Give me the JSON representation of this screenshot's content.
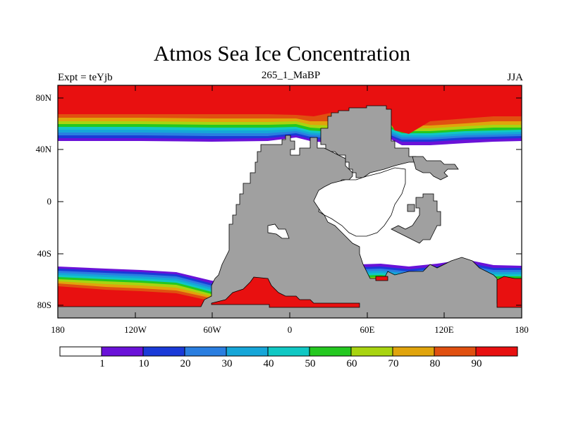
{
  "title": "Atmos Sea Ice Concentration",
  "subtitle": "265_1_MaBP",
  "left_label": "Expt = teYjb",
  "right_label": "JJA",
  "lat_labels": [
    "80N",
    "40N",
    "0",
    "40S",
    "80S"
  ],
  "lon_labels": [
    "180",
    "120W",
    "60W",
    "0",
    "60E",
    "120E",
    "180"
  ],
  "colorbar": {
    "labels": [
      "1",
      "10",
      "20",
      "30",
      "40",
      "50",
      "60",
      "70",
      "80",
      "90"
    ],
    "colors": [
      "#ffffff",
      "#6a12d8",
      "#1a3ad8",
      "#2a7ee0",
      "#16a6d8",
      "#10c8c4",
      "#24c820",
      "#a8d410",
      "#e0a40c",
      "#e05010",
      "#e81010"
    ]
  },
  "colors": {
    "land": "#a0a0a0",
    "ice_max": "#e81010"
  },
  "chart_data": {
    "type": "heatmap",
    "title": "Atmos Sea Ice Concentration",
    "subtitle": "265_1_MaBP",
    "variable": "sea ice concentration (%)",
    "season": "JJA",
    "x_range": [
      -180,
      180
    ],
    "y_range": [
      -90,
      90
    ],
    "x_ticks": [
      "180",
      "120W",
      "60W",
      "0",
      "60E",
      "120E",
      "180"
    ],
    "y_ticks": [
      "80N",
      "40N",
      "0",
      "40S",
      "80S"
    ],
    "levels": [
      1,
      10,
      20,
      30,
      40,
      50,
      60,
      70,
      80,
      90
    ],
    "ice_bands": [
      {
        "region": "northern",
        "ice_edge_lat": 48,
        "full_cover_lat": 65
      },
      {
        "region": "southern",
        "ice_edge_lat": -52,
        "full_cover_lat": -65
      }
    ]
  }
}
